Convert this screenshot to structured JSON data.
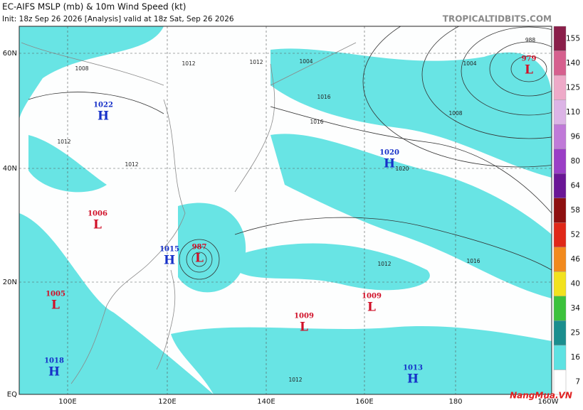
{
  "header": {
    "title": "EC-AIFS MSLP (mb) & 10m Wind Speed (kt)",
    "subtitle": "Init: 18z Sep 26 2026   [Analysis]   valid at 18z Sat, Sep 26 2026",
    "site": "TROPICALTIDBITS.COM"
  },
  "latitude_labels": [
    "60N",
    "40N",
    "20N",
    "EQ"
  ],
  "longitude_labels": [
    "100E",
    "120E",
    "140E",
    "160E",
    "180",
    "160W"
  ],
  "centers": [
    {
      "type": "H",
      "value": "1022"
    },
    {
      "type": "H",
      "value": "1020"
    },
    {
      "type": "L",
      "value": "1006"
    },
    {
      "type": "H",
      "value": "1015"
    },
    {
      "type": "L",
      "value": "987"
    },
    {
      "type": "L",
      "value": "1005"
    },
    {
      "type": "L",
      "value": "1009"
    },
    {
      "type": "L",
      "value": "1009"
    },
    {
      "type": "H",
      "value": "1018"
    },
    {
      "type": "H",
      "value": "1013"
    },
    {
      "type": "L",
      "value": "979"
    }
  ],
  "isobar_labels": [
    "1008",
    "1012",
    "1016",
    "1004",
    "988",
    "1020",
    "1012",
    "1016",
    "1012",
    "1008",
    "1012",
    "1004",
    "1012",
    "1012",
    "1016"
  ],
  "colorbar": [
    {
      "label": "155",
      "color": "#8a1f4a"
    },
    {
      "label": "140",
      "color": "#d6608e"
    },
    {
      "label": "125",
      "color": "#eeaac8"
    },
    {
      "label": "110",
      "color": "#dcb4e6"
    },
    {
      "label": "96",
      "color": "#c07ad8"
    },
    {
      "label": "80",
      "color": "#9a3fc6"
    },
    {
      "label": "64",
      "color": "#6a1696"
    },
    {
      "label": "58",
      "color": "#8e1010"
    },
    {
      "label": "52",
      "color": "#e02818"
    },
    {
      "label": "46",
      "color": "#f28a1e"
    },
    {
      "label": "40",
      "color": "#f2e21e"
    },
    {
      "label": "34",
      "color": "#3cc23c"
    },
    {
      "label": "25",
      "color": "#1a8e8e"
    },
    {
      "label": "16",
      "color": "#5ee2e2"
    },
    {
      "label": "7",
      "color": "#ffffff"
    }
  ],
  "watermark": "NangMua.VN"
}
